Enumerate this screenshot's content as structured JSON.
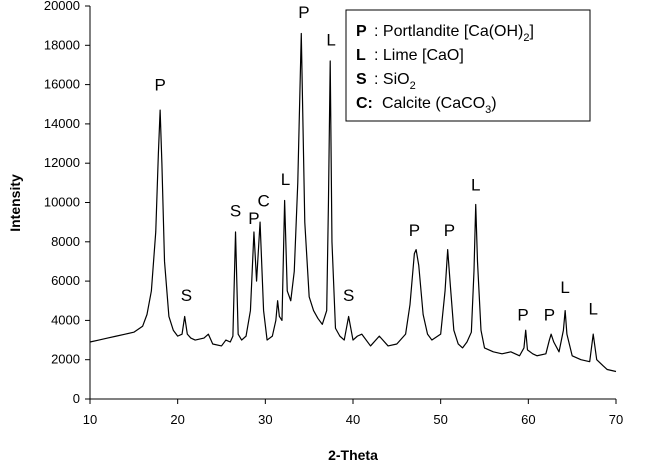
{
  "chart_data": {
    "type": "line",
    "x_label": "2-Theta",
    "y_label": "Intensity",
    "xlim": [
      10,
      70
    ],
    "ylim": [
      0,
      20000
    ],
    "xticks": [
      10,
      20,
      30,
      40,
      50,
      60,
      70
    ],
    "yticks": [
      0,
      2000,
      4000,
      6000,
      8000,
      10000,
      12000,
      14000,
      16000,
      18000,
      20000
    ],
    "x": [
      10,
      11,
      12,
      13,
      14,
      15,
      16,
      16.5,
      17,
      17.5,
      17.8,
      18,
      18.2,
      18.5,
      19,
      19.5,
      20,
      20.5,
      20.8,
      21.1,
      21.5,
      22,
      23,
      23.5,
      24,
      25,
      25.5,
      26,
      26.3,
      26.6,
      26.9,
      27.3,
      27.8,
      28.3,
      28.7,
      29,
      29.4,
      29.8,
      30.2,
      30.8,
      31.2,
      31.4,
      31.6,
      31.9,
      32.2,
      32.5,
      32.9,
      33.3,
      33.7,
      34.1,
      34.5,
      35,
      35.5,
      36,
      36.5,
      37,
      37.2,
      37.4,
      37.6,
      38,
      38.5,
      39,
      39.5,
      40,
      40.5,
      41,
      42,
      43,
      44,
      45,
      46,
      46.5,
      47,
      47.2,
      47.5,
      48,
      48.5,
      49,
      50,
      50.5,
      50.8,
      51.1,
      51.5,
      52,
      52.5,
      53,
      53.5,
      53.8,
      54,
      54.2,
      54.6,
      55,
      56,
      57,
      58,
      59,
      59.5,
      59.7,
      59.9,
      60.5,
      61,
      62,
      62.4,
      62.6,
      62.9,
      63.5,
      64,
      64.2,
      64.4,
      65,
      66,
      67,
      67.4,
      67.8,
      68.5,
      69,
      70
    ],
    "series": [
      {
        "color": "#000000",
        "values": [
          2900,
          3000,
          3100,
          3200,
          3300,
          3400,
          3700,
          4300,
          5500,
          8500,
          12500,
          14700,
          12000,
          7000,
          4200,
          3500,
          3200,
          3300,
          4200,
          3300,
          3100,
          3000,
          3100,
          3300,
          2800,
          2700,
          3000,
          2900,
          3200,
          8500,
          3300,
          3000,
          3200,
          4500,
          8500,
          6000,
          9000,
          4500,
          3000,
          3200,
          4000,
          5000,
          4200,
          4000,
          10100,
          5500,
          5000,
          6500,
          11000,
          18600,
          9000,
          5200,
          4500,
          4100,
          3800,
          4500,
          10000,
          17200,
          8000,
          3600,
          3200,
          3000,
          4200,
          3000,
          3200,
          3300,
          2700,
          3200,
          2700,
          2800,
          3300,
          4800,
          7400,
          7600,
          6800,
          4300,
          3300,
          3000,
          3300,
          5500,
          7600,
          5800,
          3500,
          2800,
          2600,
          2900,
          3400,
          6500,
          9900,
          7000,
          3500,
          2600,
          2400,
          2300,
          2400,
          2200,
          2600,
          3500,
          2500,
          2300,
          2200,
          2300,
          3000,
          3300,
          2900,
          2400,
          3500,
          4500,
          3300,
          2200,
          2000,
          1900,
          3300,
          2000,
          1700,
          1500,
          1400
        ]
      }
    ],
    "annotations": [
      {
        "text": "P",
        "x": 18,
        "y": 15700
      },
      {
        "text": "S",
        "x": 21,
        "y": 5000
      },
      {
        "text": "S",
        "x": 26.6,
        "y": 9300
      },
      {
        "text": "P",
        "x": 28.7,
        "y": 8900
      },
      {
        "text": "C",
        "x": 29.8,
        "y": 9800
      },
      {
        "text": "L",
        "x": 32.3,
        "y": 10900
      },
      {
        "text": "P",
        "x": 34.4,
        "y": 19400
      },
      {
        "text": "L",
        "x": 37.5,
        "y": 18000
      },
      {
        "text": "S",
        "x": 39.5,
        "y": 5000
      },
      {
        "text": "P",
        "x": 47,
        "y": 8300
      },
      {
        "text": "P",
        "x": 51,
        "y": 8300
      },
      {
        "text": "L",
        "x": 54,
        "y": 10600
      },
      {
        "text": "P",
        "x": 59.4,
        "y": 4000
      },
      {
        "text": "P",
        "x": 62.4,
        "y": 4000
      },
      {
        "text": "L",
        "x": 64.2,
        "y": 5400
      },
      {
        "text": "L",
        "x": 67.4,
        "y": 4300
      }
    ],
    "legend": [
      {
        "key": "P",
        "text": ": Portlandite [Ca(OH)",
        "sub": "2",
        "after": "]"
      },
      {
        "key": "L",
        "text": ": Lime [CaO]"
      },
      {
        "key": "S",
        "text": ": SiO",
        "sub": "2"
      },
      {
        "key": "C:",
        "text": "Calcite (CaCO",
        "sub": "3",
        "after": ")"
      }
    ]
  }
}
